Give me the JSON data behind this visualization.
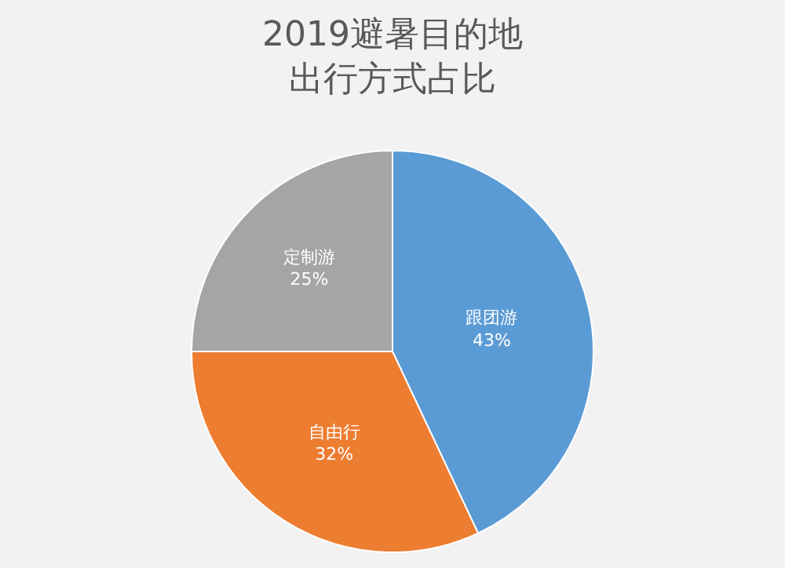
{
  "chart_data": {
    "type": "pie",
    "title": "2019避暑目的地出行方式占比",
    "categories": [
      "跟团游",
      "自由行",
      "定制游"
    ],
    "values": [
      43,
      32,
      25
    ],
    "value_labels": [
      "43%",
      "32%",
      "25%"
    ],
    "colors": [
      "#5b9bd5",
      "#ed7d31",
      "#a5a5a5"
    ],
    "legend": false
  }
}
